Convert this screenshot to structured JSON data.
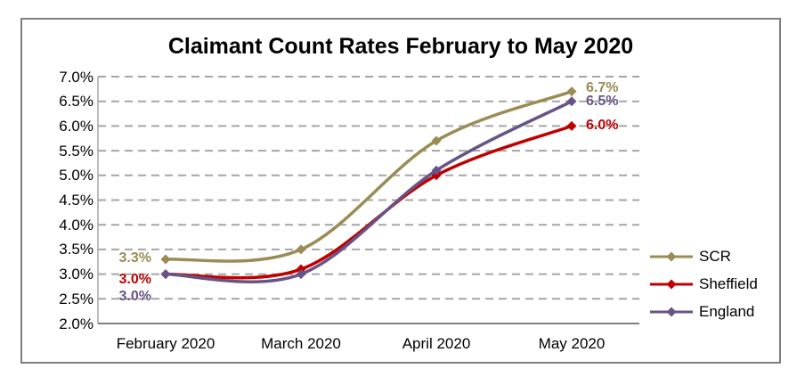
{
  "chart_data": {
    "type": "line",
    "title": "Claimant Count Rates February to May 2020",
    "categories": [
      "February 2020",
      "March 2020",
      "April 2020",
      "May 2020"
    ],
    "series": [
      {
        "name": "SCR",
        "color": "#9B8C55",
        "values": [
          3.3,
          3.5,
          5.7,
          6.7
        ],
        "first_label": "3.3%",
        "last_label": "6.7%"
      },
      {
        "name": "Sheffield",
        "color": "#C00000",
        "values": [
          3.0,
          3.1,
          5.0,
          6.0
        ],
        "first_label": "3.0%",
        "last_label": "6.0%"
      },
      {
        "name": "England",
        "color": "#685386",
        "values": [
          3.0,
          3.0,
          5.1,
          6.5
        ],
        "first_label": "3.0%",
        "last_label": "6.5%"
      }
    ],
    "ylim": [
      2.0,
      7.0
    ],
    "ytick_step": 0.5,
    "yticks": [
      "7.0%",
      "6.5%",
      "6.0%",
      "5.5%",
      "5.0%",
      "4.5%",
      "4.0%",
      "3.5%",
      "3.0%",
      "2.5%",
      "2.0%"
    ],
    "xlabel": "",
    "ylabel": "",
    "grid": "horizontal-dashed",
    "legend_position": "right",
    "line_style": "smooth",
    "marker": "diamond"
  },
  "colors": {
    "grid": "#A6A6A6",
    "axis_line": "#808080",
    "frame_border": "#7F7F7F",
    "background": "#FFFFFF",
    "title_text": "#000000",
    "tick_text": "#000000"
  }
}
